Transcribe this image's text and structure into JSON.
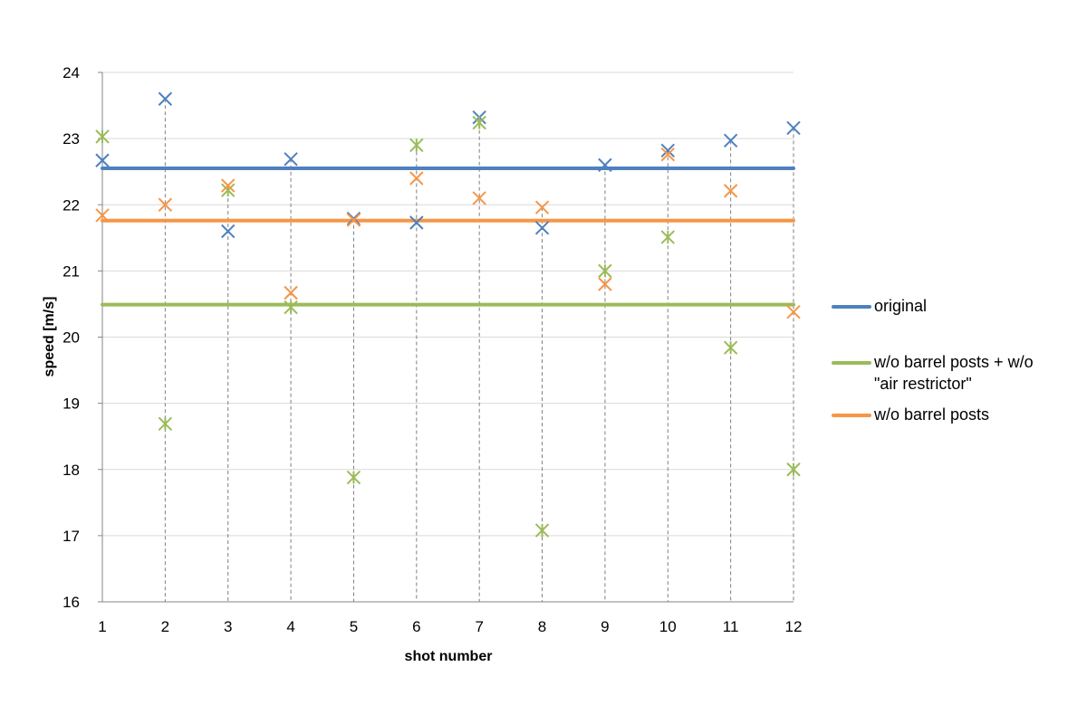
{
  "chart_data": {
    "type": "scatter",
    "title": "",
    "xlabel": "shot number",
    "ylabel": "speed [m/s]",
    "xlim": [
      1,
      12
    ],
    "ylim": [
      16,
      24
    ],
    "x_ticks": [
      1,
      2,
      3,
      4,
      5,
      6,
      7,
      8,
      9,
      10,
      11,
      12
    ],
    "y_ticks": [
      16,
      17,
      18,
      19,
      20,
      21,
      22,
      23,
      24
    ],
    "grid": {
      "horizontal": true,
      "vertical_dashed_drop_lines": true
    },
    "legend_position": "right",
    "x": [
      1,
      2,
      3,
      4,
      5,
      6,
      7,
      8,
      9,
      10,
      11,
      12
    ],
    "series": [
      {
        "name": "original",
        "color": "#4f81bd",
        "marker": "x",
        "values": [
          22.67,
          23.6,
          21.6,
          22.69,
          21.79,
          21.73,
          23.32,
          21.65,
          22.6,
          22.82,
          22.97,
          23.16
        ],
        "mean": 22.55
      },
      {
        "name": "w/o barrel posts + w/o \"air restrictor\"",
        "color": "#9bbb59",
        "marker": "star",
        "values": [
          23.03,
          18.69,
          22.22,
          20.45,
          17.88,
          22.9,
          23.24,
          17.08,
          21.0,
          21.51,
          19.84,
          18.0
        ],
        "mean": 20.49
      },
      {
        "name": "w/o barrel posts",
        "color": "#f79646",
        "marker": "x",
        "values": [
          21.84,
          22.0,
          22.29,
          20.67,
          21.77,
          22.4,
          22.1,
          21.96,
          20.8,
          22.76,
          22.21,
          20.38
        ],
        "mean": 21.76
      }
    ]
  },
  "legend": {
    "items": [
      {
        "label": "original",
        "color": "#4f81bd"
      },
      {
        "label": "w/o barrel posts + w/o\n\"air restrictor\"",
        "color": "#9bbb59"
      },
      {
        "label": "w/o barrel posts",
        "color": "#f79646"
      }
    ]
  }
}
